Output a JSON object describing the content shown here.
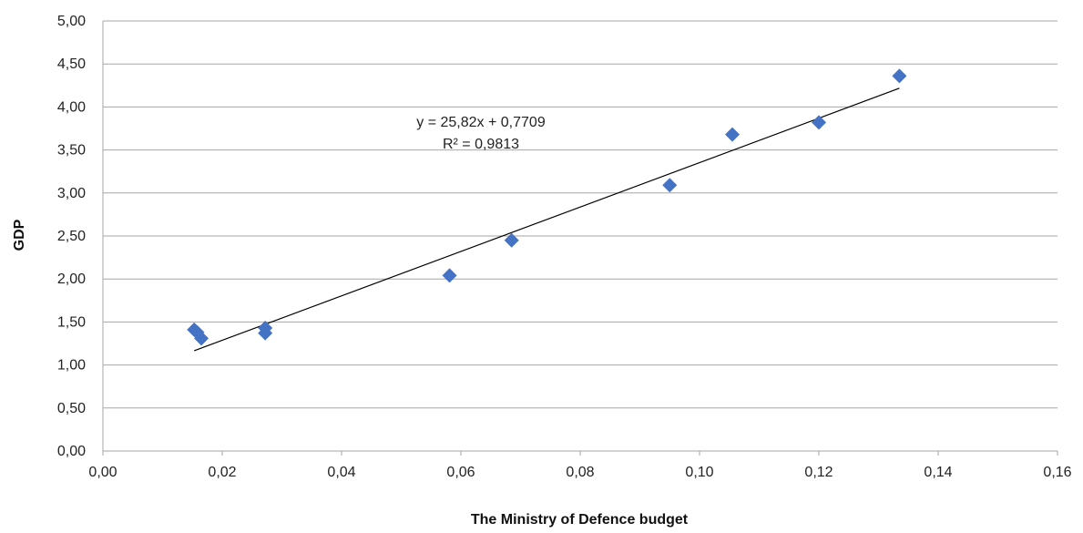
{
  "chart_data": {
    "type": "scatter",
    "title": "",
    "xlabel": "The Ministry of Defence budget",
    "ylabel": "GDP",
    "xlim": [
      0,
      0.16
    ],
    "ylim": [
      0,
      5
    ],
    "x_ticks": [
      "0,00",
      "0,02",
      "0,04",
      "0,06",
      "0,08",
      "0,10",
      "0,12",
      "0,14",
      "0,16"
    ],
    "y_ticks": [
      "0,00",
      "0,50",
      "1,00",
      "1,50",
      "2,00",
      "2,50",
      "3,00",
      "3,50",
      "4,00",
      "4,50",
      "5,00"
    ],
    "grid": "horizontal",
    "legend": "none",
    "marker_color": "#4472C4",
    "series": [
      {
        "points": [
          {
            "x": 0.0153,
            "y": 1.41
          },
          {
            "x": 0.0158,
            "y": 1.38
          },
          {
            "x": 0.0165,
            "y": 1.31
          },
          {
            "x": 0.0272,
            "y": 1.43
          },
          {
            "x": 0.0272,
            "y": 1.37
          },
          {
            "x": 0.0581,
            "y": 2.04
          },
          {
            "x": 0.0685,
            "y": 2.45
          },
          {
            "x": 0.095,
            "y": 3.09
          },
          {
            "x": 0.1055,
            "y": 3.68
          },
          {
            "x": 0.12,
            "y": 3.82
          },
          {
            "x": 0.1335,
            "y": 4.36
          }
        ]
      }
    ],
    "trendline": {
      "slope": 25.82,
      "intercept": 0.7709,
      "x_range": [
        0.0153,
        0.1335
      ],
      "equation_label": "y = 25,82x + 0,7709",
      "r2_label": "R² = 0,9813",
      "color": "#000000"
    }
  }
}
